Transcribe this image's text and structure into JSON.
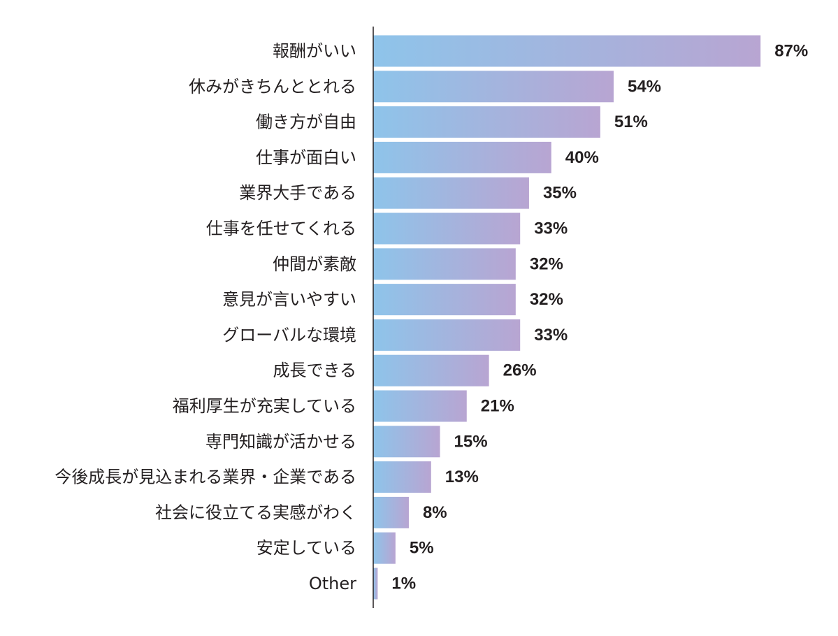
{
  "chart_data": {
    "type": "bar",
    "orientation": "horizontal",
    "categories": [
      "報酬がいい",
      "休みがきちんととれる",
      "働き方が自由",
      "仕事が面白い",
      "業界大手である",
      "仕事を任せてくれる",
      "仲間が素敵",
      "意見が言いやすい",
      "グローバルな環境",
      "成長できる",
      "福利厚生が充実している",
      "専門知識が活かせる",
      "今後成長が見込まれる業界・企業である",
      "社会に役立てる実感がわく",
      "安定している",
      "Other"
    ],
    "values": [
      87,
      54,
      51,
      40,
      35,
      33,
      32,
      32,
      33,
      26,
      21,
      15,
      13,
      8,
      5,
      1
    ],
    "value_labels": [
      "87%",
      "54%",
      "51%",
      "40%",
      "35%",
      "33%",
      "32%",
      "32%",
      "33%",
      "26%",
      "21%",
      "15%",
      "13%",
      "8%",
      "5%",
      "1%"
    ],
    "title": "",
    "xlabel": "",
    "ylabel": "",
    "xlim": [
      0,
      100
    ],
    "grid": false,
    "legend": "none",
    "colors": {
      "gradient_start": "#8ec4ea",
      "gradient_end": "#b8a5d2",
      "axis": "#231f20",
      "text": "#231f20"
    }
  }
}
